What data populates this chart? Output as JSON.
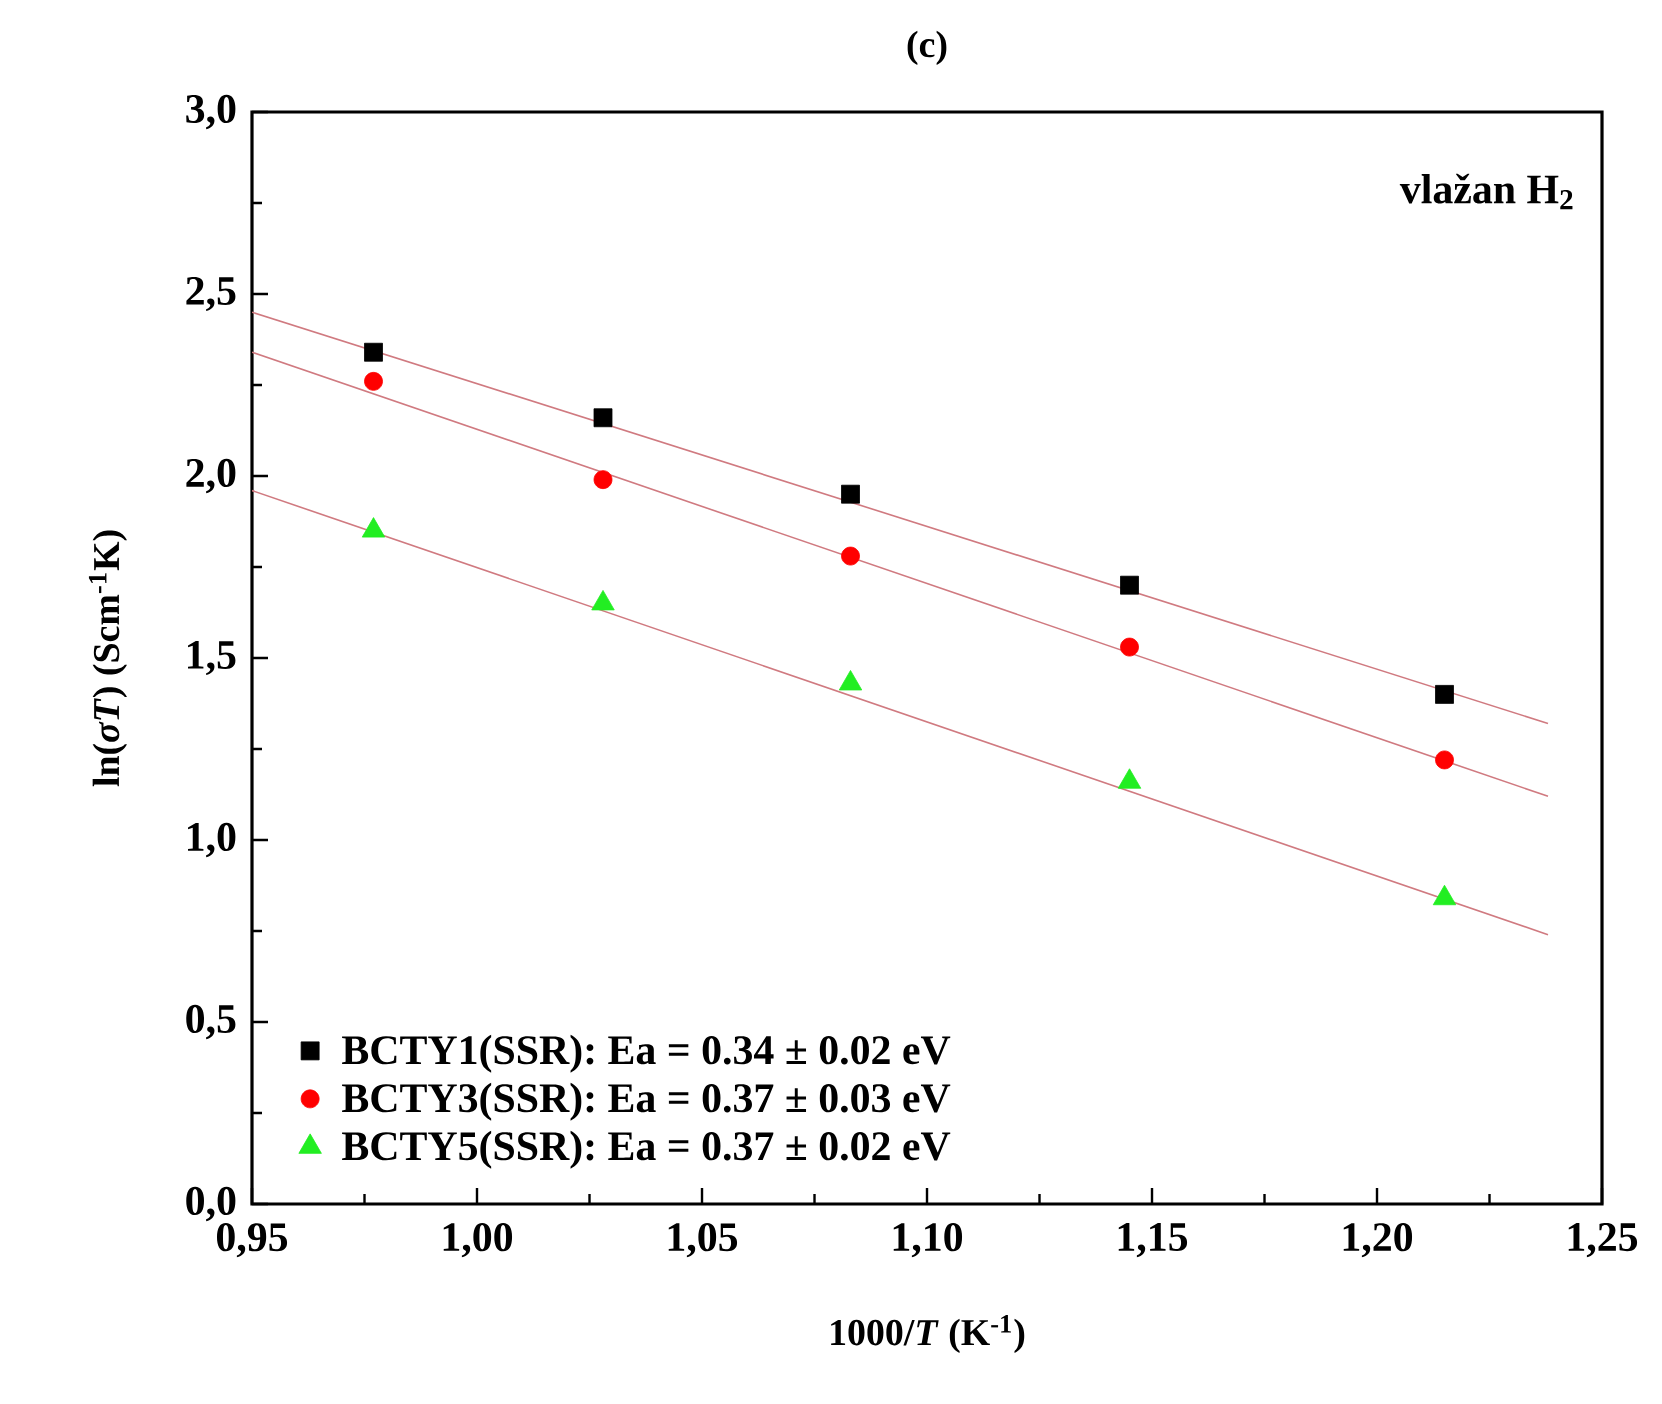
{
  "chart_data": {
    "type": "scatter",
    "title": "(c)",
    "xlabel": "1000/*T* (K$^{-1}$)",
    "ylabel": "ln(*σT*)  (Scm$^{-1}$K)",
    "annotations": [
      "vlažan H$_{2}$"
    ],
    "xlim": [
      0.95,
      1.25
    ],
    "ylim": [
      0.0,
      3.0
    ],
    "xticks": [
      {
        "value": 0.95,
        "label": "0,95"
      },
      {
        "value": 1.0,
        "label": "1,00"
      },
      {
        "value": 1.05,
        "label": "1,05"
      },
      {
        "value": 1.1,
        "label": "1,10"
      },
      {
        "value": 1.15,
        "label": "1,15"
      },
      {
        "value": 1.2,
        "label": "1,20"
      },
      {
        "value": 1.25,
        "label": "1,25"
      }
    ],
    "yticks": [
      {
        "value": 0.0,
        "label": "0,0"
      },
      {
        "value": 0.5,
        "label": "0,5"
      },
      {
        "value": 1.0,
        "label": "1,0"
      },
      {
        "value": 1.5,
        "label": "1,5"
      },
      {
        "value": 2.0,
        "label": "2,0"
      },
      {
        "value": 2.5,
        "label": "2,5"
      },
      {
        "value": 3.0,
        "label": "3,0"
      }
    ],
    "grid": false,
    "legend": "bottom left",
    "series": [
      {
        "name": "BCTY1(SSR): Ea = 0.34 ± 0.02 eV",
        "marker": "square",
        "color": "#000000",
        "x": [
          0.977,
          1.028,
          1.083,
          1.145,
          1.215
        ],
        "values": [
          2.34,
          2.16,
          1.95,
          1.7,
          1.4
        ]
      },
      {
        "name": "BCTY3(SSR): Ea = 0.37 ± 0.03 eV",
        "marker": "circle",
        "color": "#ff0000",
        "x": [
          0.977,
          1.028,
          1.083,
          1.145,
          1.215
        ],
        "values": [
          2.26,
          1.99,
          1.78,
          1.53,
          1.22
        ]
      },
      {
        "name": "BCTY5(SSR): Ea = 0.37 ± 0.02 eV",
        "marker": "triangle",
        "color": "#22ee22",
        "x": [
          0.977,
          1.028,
          1.083,
          1.145,
          1.215
        ],
        "values": [
          1.85,
          1.65,
          1.43,
          1.16,
          0.84
        ]
      },
      {
        "type": "line",
        "marker": "none",
        "line_style": "solid",
        "color": "#d07a80",
        "x": [
          0.95,
          1.238
        ],
        "values": [
          2.45,
          1.32
        ]
      },
      {
        "type": "line",
        "marker": "none",
        "line_style": "solid",
        "color": "#d07a80",
        "x": [
          0.95,
          1.238
        ],
        "values": [
          2.34,
          1.12
        ]
      },
      {
        "type": "line",
        "marker": "none",
        "line_style": "solid",
        "color": "#d07a80",
        "x": [
          0.95,
          1.238
        ],
        "values": [
          1.96,
          0.74
        ]
      }
    ]
  }
}
